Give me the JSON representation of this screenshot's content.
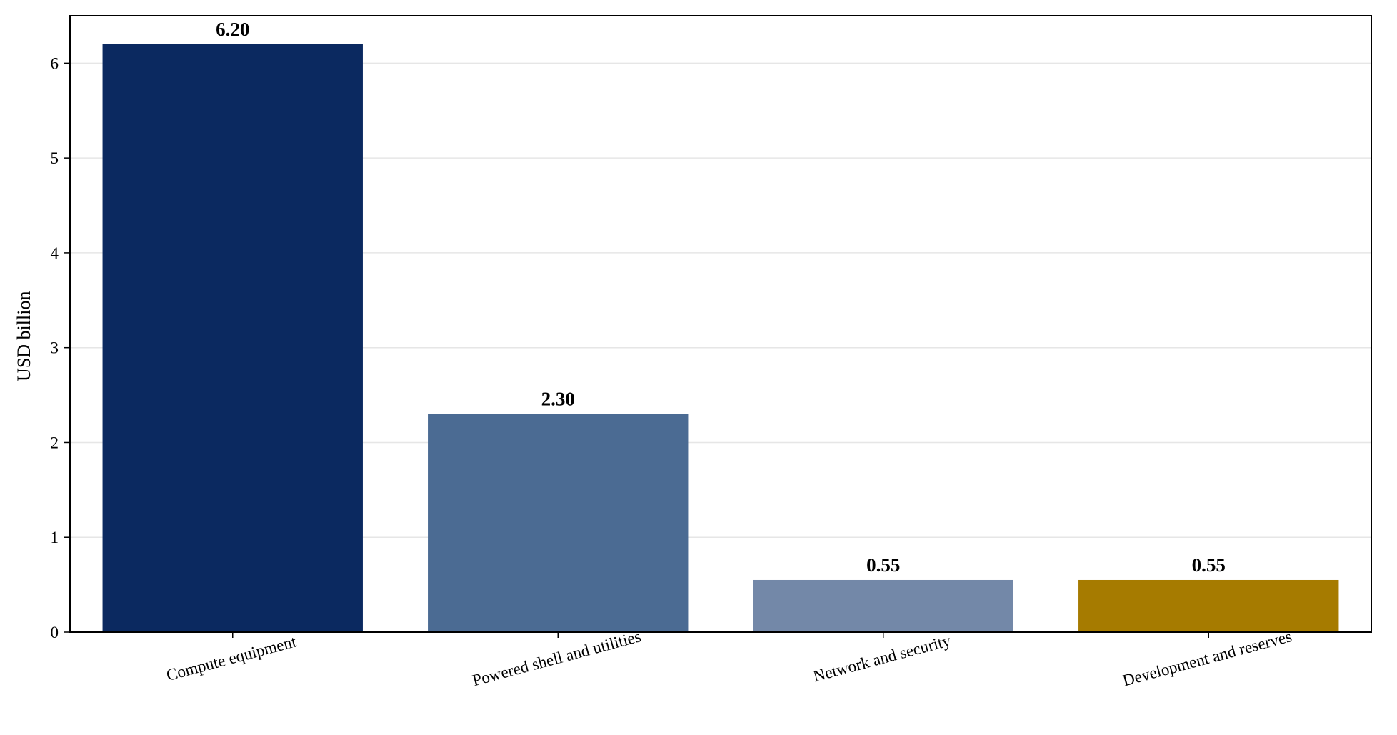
{
  "chart_data": {
    "type": "bar",
    "categories": [
      "Compute equipment",
      "Powered shell and utilities",
      "Network and security",
      "Development and reserves"
    ],
    "values": [
      6.2,
      2.3,
      0.55,
      0.55
    ],
    "value_labels": [
      "6.20",
      "2.30",
      "0.55",
      "0.55"
    ],
    "colors": [
      "#0b2960",
      "#4b6b93",
      "#7388a8",
      "#a67b00"
    ],
    "title": "",
    "xlabel": "",
    "ylabel": "USD billion",
    "ylim": [
      0,
      6.5
    ],
    "yticks": [
      0,
      1,
      2,
      3,
      4,
      5,
      6
    ],
    "grid": "y",
    "legend": "none"
  }
}
